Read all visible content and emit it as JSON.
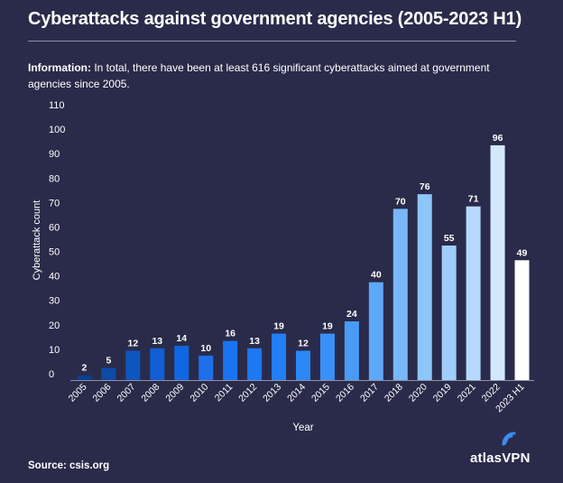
{
  "title": "Cyberattacks against government agencies (2005-2023 H1)",
  "info_label": "Information:",
  "info_text": "In total, there have been at least 616 significant cyberattacks aimed at government agencies since 2005.",
  "source": "Source: csis.org",
  "brand_name": "atlasVPN",
  "colors": {
    "background": "#2a2b4a",
    "bars": [
      "#0d3f8f",
      "#0e4aa6",
      "#0f55bf",
      "#105ed4",
      "#1167e2",
      "#1f6fea",
      "#1a74f2",
      "#1d78f3",
      "#237ff5",
      "#2b87f6",
      "#3990f7",
      "#4a9bf8",
      "#5ea8f9",
      "#78b8fa",
      "#8ec5fb",
      "#a0cdfb",
      "#b5d9fc",
      "#d3e8fd",
      "#ffffff"
    ]
  },
  "chart_data": {
    "type": "bar",
    "categories": [
      "2005",
      "2006",
      "2007",
      "2008",
      "2009",
      "2010",
      "2011",
      "2012",
      "2013",
      "2014",
      "2015",
      "2016",
      "2017",
      "2018",
      "2020",
      "2019",
      "2021",
      "2022",
      "2023 H1"
    ],
    "values": [
      2,
      5,
      12,
      13,
      14,
      10,
      16,
      13,
      19,
      12,
      19,
      24,
      40,
      70,
      76,
      55,
      71,
      96,
      49
    ],
    "title": "Cyberattacks against government agencies (2005-2023 H1)",
    "xlabel": "Year",
    "ylabel": "Cyberattack count",
    "ylim": [
      0,
      110
    ],
    "yticks": [
      0,
      10,
      20,
      30,
      40,
      50,
      60,
      70,
      80,
      90,
      100,
      110
    ],
    "grid": false,
    "legend": "none"
  }
}
